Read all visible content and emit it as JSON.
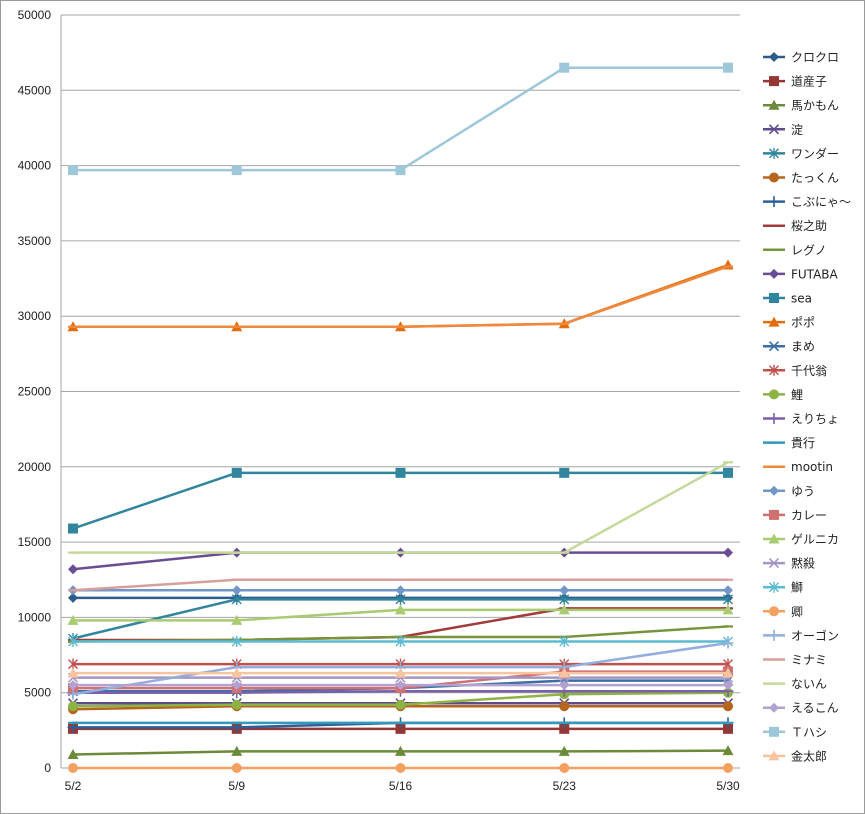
{
  "chart_data": {
    "type": "line",
    "title": "",
    "xlabel": "",
    "ylabel": "",
    "categories": [
      "5/2",
      "5/9",
      "5/16",
      "5/23",
      "5/30"
    ],
    "ylim": [
      0,
      50000
    ],
    "yticks": [
      0,
      5000,
      10000,
      15000,
      20000,
      25000,
      30000,
      35000,
      40000,
      45000,
      50000
    ],
    "grid": true,
    "legend": "right",
    "series": [
      {
        "name": "クロクロ",
        "color": "#2d5b8c",
        "marker": "diamond",
        "values": [
          11300,
          11300,
          11300,
          11300,
          11300
        ]
      },
      {
        "name": "道産子",
        "color": "#953735",
        "marker": "square",
        "values": [
          2600,
          2600,
          2600,
          2600,
          2600
        ]
      },
      {
        "name": "馬かもん",
        "color": "#6b8a3a",
        "marker": "triangle",
        "values": [
          900,
          1100,
          1100,
          1100,
          1150
        ]
      },
      {
        "name": "淀",
        "color": "#5f4b8b",
        "marker": "x",
        "values": [
          4300,
          4300,
          4300,
          4300,
          4300
        ]
      },
      {
        "name": "ワンダー",
        "color": "#31859c",
        "marker": "star",
        "values": [
          8600,
          11200,
          11200,
          11200,
          11200
        ]
      },
      {
        "name": "たっくん",
        "color": "#b5651d",
        "marker": "circle",
        "values": [
          3900,
          4100,
          4100,
          4100,
          4100
        ]
      },
      {
        "name": "こぶにゃ〜",
        "color": "#2e5f98",
        "marker": "plus",
        "values": [
          2700,
          2700,
          3000,
          3000,
          3000
        ]
      },
      {
        "name": "桜之助",
        "color": "#a23b3b",
        "marker": "dash",
        "values": [
          8500,
          8500,
          8700,
          10600,
          10600
        ]
      },
      {
        "name": "レグノ",
        "color": "#77933c",
        "marker": "dash",
        "values": [
          8400,
          8500,
          8700,
          8700,
          9400
        ]
      },
      {
        "name": "FUTABA",
        "color": "#6a4c93",
        "marker": "diamond",
        "values": [
          13200,
          14300,
          14300,
          14300,
          14300
        ]
      },
      {
        "name": "sea",
        "color": "#31859c",
        "marker": "square",
        "values": [
          15900,
          19600,
          19600,
          19600,
          19600
        ]
      },
      {
        "name": "ポポ",
        "color": "#e46c0a",
        "marker": "triangle",
        "values": [
          29300,
          29300,
          29300,
          29500,
          33400
        ]
      },
      {
        "name": "まめ",
        "color": "#3a6ea5",
        "marker": "x",
        "values": [
          5100,
          5100,
          5300,
          5800,
          5800
        ]
      },
      {
        "name": "千代翁",
        "color": "#c0504d",
        "marker": "star",
        "values": [
          6900,
          6900,
          6900,
          6900,
          6900
        ]
      },
      {
        "name": "鯉",
        "color": "#8db344",
        "marker": "circle",
        "values": [
          4100,
          4200,
          4200,
          4900,
          5000
        ]
      },
      {
        "name": "えりちょ",
        "color": "#7a60a8",
        "marker": "plus",
        "values": [
          5000,
          5000,
          5100,
          5100,
          5100
        ]
      },
      {
        "name": "貴行",
        "color": "#3399bb",
        "marker": "dash",
        "values": [
          3000,
          3000,
          3000,
          3000,
          3000
        ]
      },
      {
        "name": "mootin",
        "color": "#f0883e",
        "marker": "dash",
        "values": [
          29300,
          29300,
          29300,
          29500,
          33300
        ]
      },
      {
        "name": "ゆう",
        "color": "#7396c9",
        "marker": "diamond",
        "values": [
          11800,
          11800,
          11800,
          11800,
          11800
        ]
      },
      {
        "name": "カレー",
        "color": "#d07070",
        "marker": "square",
        "values": [
          5300,
          5300,
          5300,
          6400,
          6400
        ]
      },
      {
        "name": "ゲルニカ",
        "color": "#a9cc72",
        "marker": "triangle",
        "values": [
          9800,
          9800,
          10500,
          10500,
          10500
        ]
      },
      {
        "name": "黙殺",
        "color": "#a495c4",
        "marker": "x",
        "values": [
          6000,
          6000,
          6000,
          6000,
          6000
        ]
      },
      {
        "name": "鰤",
        "color": "#5bbbd3",
        "marker": "star",
        "values": [
          8400,
          8400,
          8400,
          8400,
          8400
        ]
      },
      {
        "name": "卿",
        "color": "#f4a060",
        "marker": "circle",
        "values": [
          0,
          0,
          0,
          0,
          0
        ]
      },
      {
        "name": "オーゴン",
        "color": "#93aedc",
        "marker": "plus",
        "values": [
          4900,
          6700,
          6700,
          6700,
          8300
        ]
      },
      {
        "name": "ミナミ",
        "color": "#d8a09d",
        "marker": "dash",
        "values": [
          11800,
          12500,
          12500,
          12500,
          12500
        ]
      },
      {
        "name": "ないん",
        "color": "#c4d99b",
        "marker": "dash",
        "values": [
          14300,
          14300,
          14300,
          14300,
          20300
        ]
      },
      {
        "name": "えるこん",
        "color": "#b3a2d1",
        "marker": "diamond",
        "values": [
          5500,
          5500,
          5500,
          5500,
          5500
        ]
      },
      {
        "name": "Ｔハシ",
        "color": "#9ec7da",
        "marker": "square",
        "values": [
          39700,
          39700,
          39700,
          46500,
          46500
        ]
      },
      {
        "name": "金太郎",
        "color": "#f8c4a0",
        "marker": "triangle",
        "values": [
          6300,
          6300,
          6300,
          6300,
          6300
        ]
      }
    ]
  }
}
